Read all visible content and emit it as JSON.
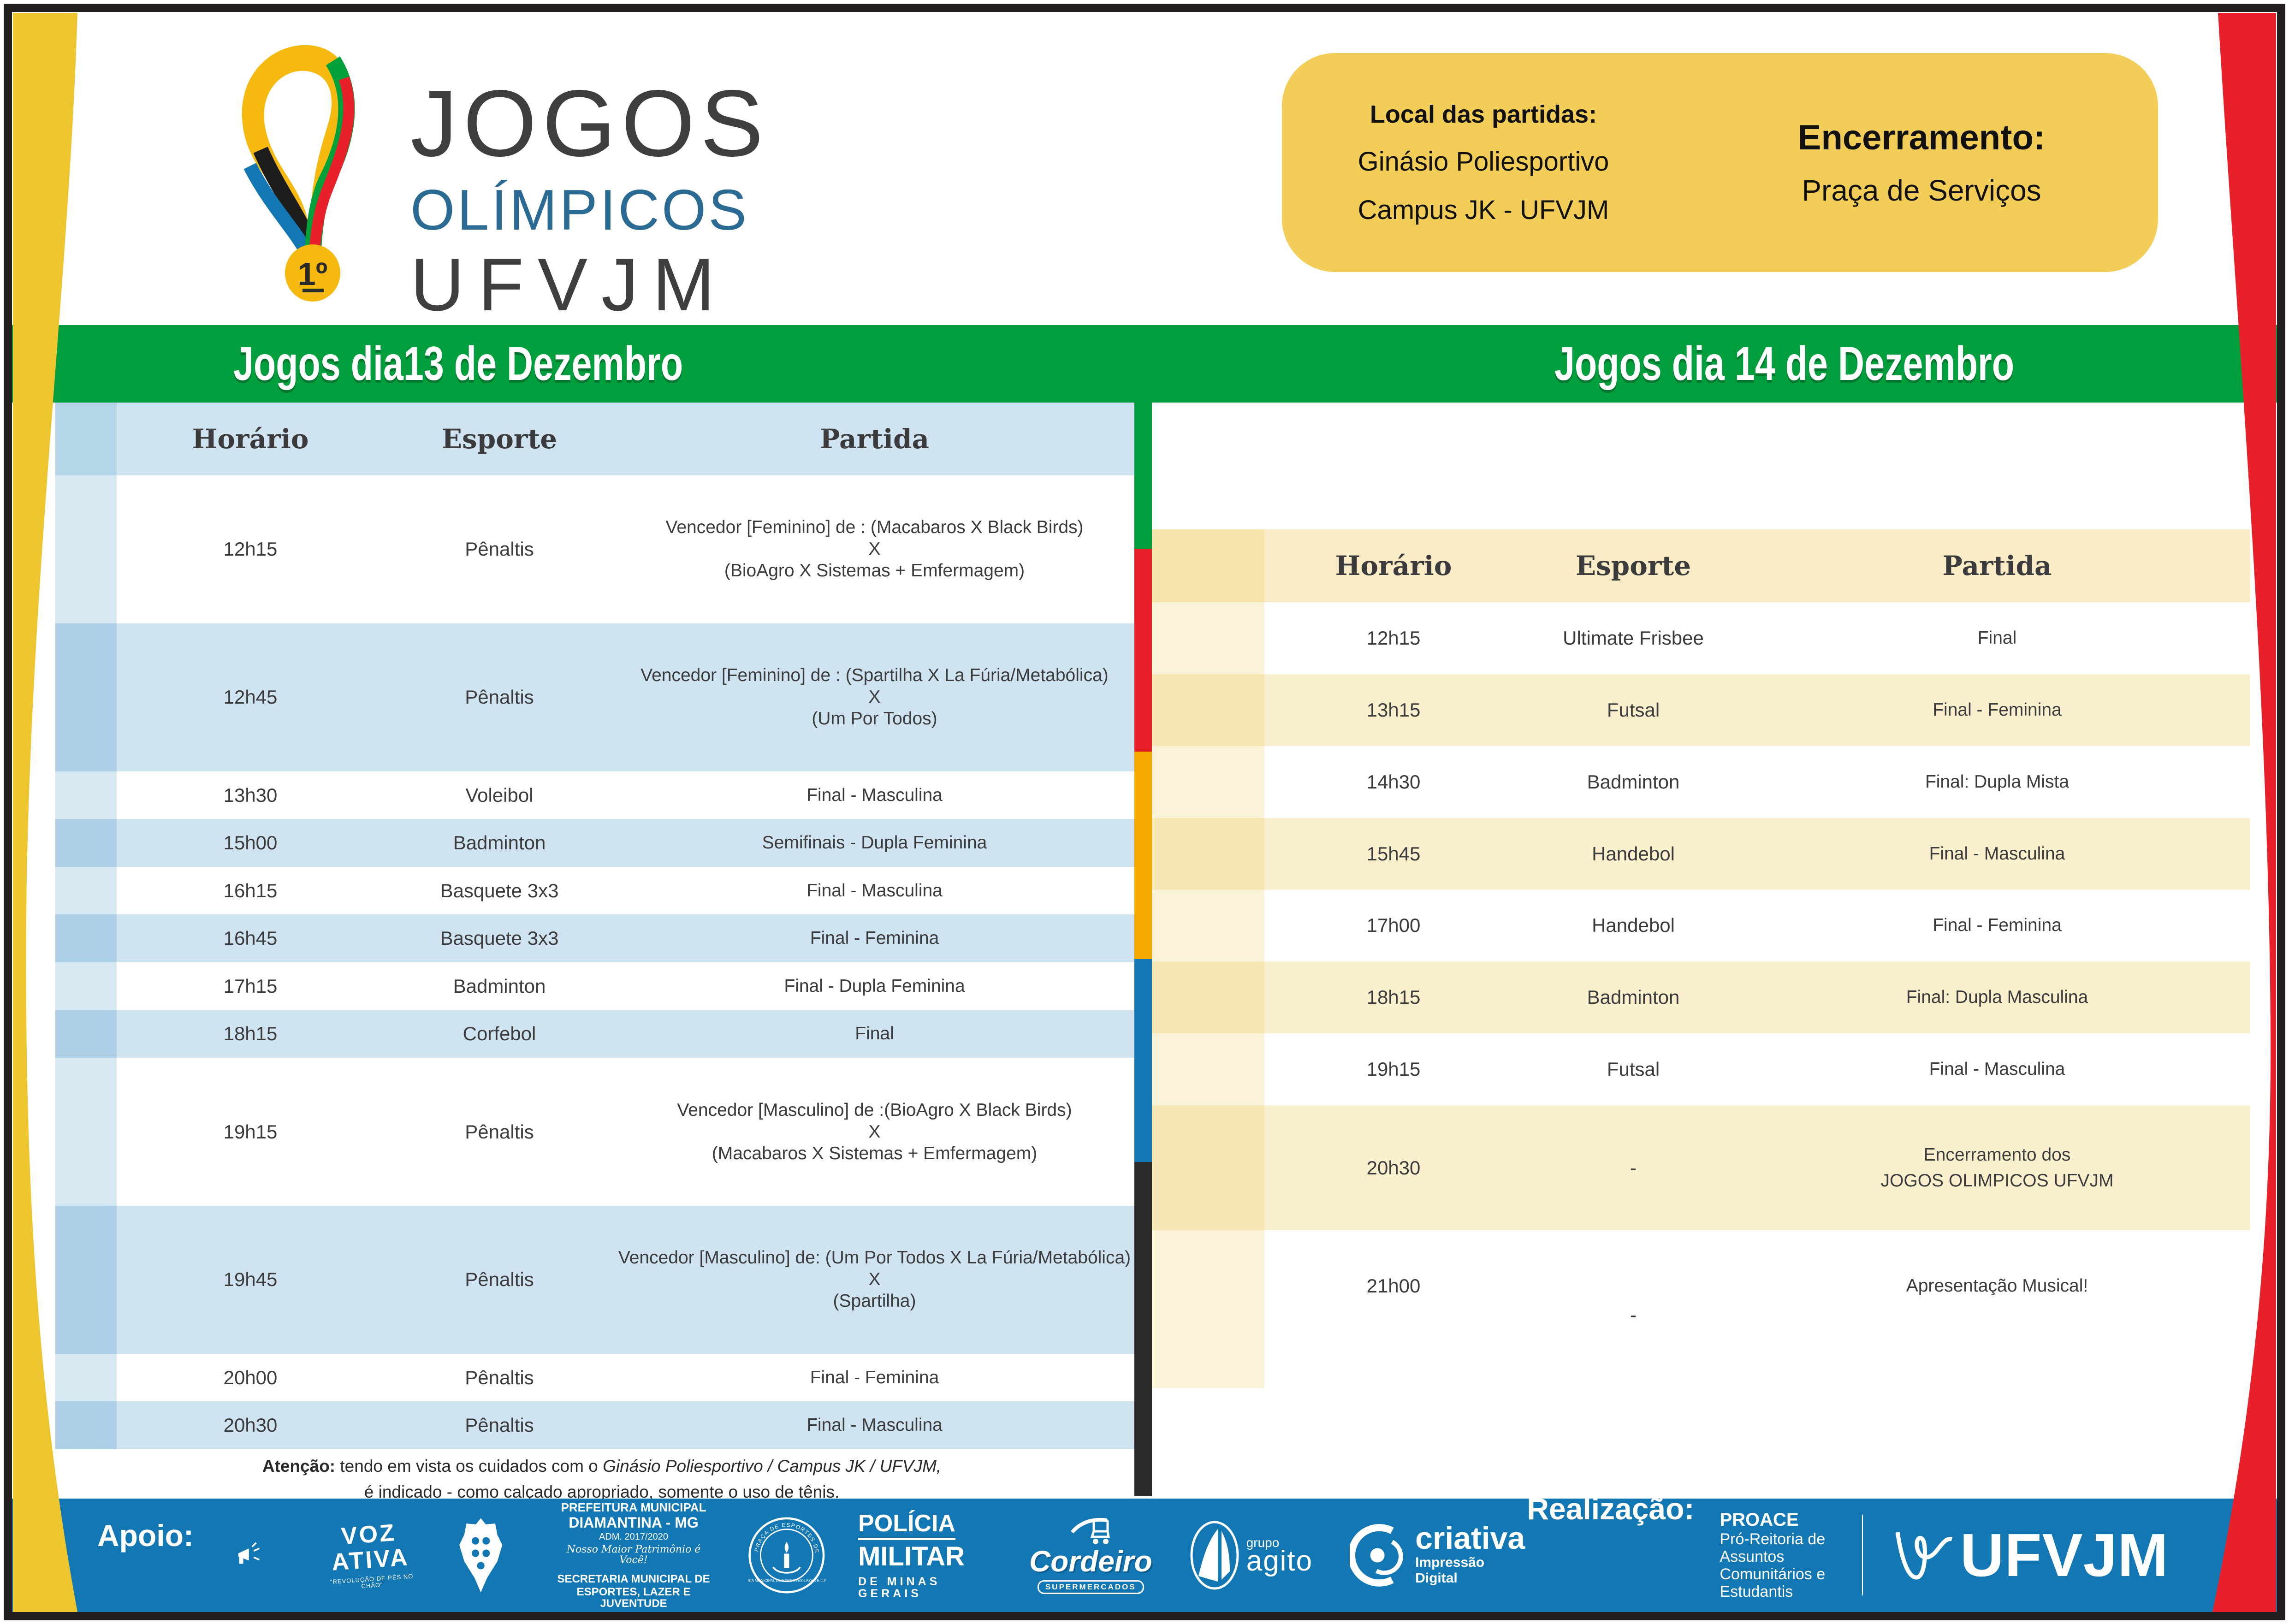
{
  "palette": {
    "green": "#009E3D",
    "red": "#E8202A",
    "yellow_strip": "#F6AB00",
    "blue": "#1377B3",
    "black": "#2B2A29",
    "row_blue": "#CFE4F0",
    "row_cream": "#FAF0CD",
    "panel_yellow": "#F2CE58",
    "curve_yellow": "#EDC52F",
    "logo_gray": "#3E3E40",
    "logo_blue": "#2B6B93"
  },
  "logo": {
    "title": "JOGOS",
    "subtitle": "OLÍMPICOS",
    "org": "UFVJM",
    "medal_label": "1º"
  },
  "info_box": {
    "location_label": "Local das partidas:",
    "location_line1": "Ginásio Poliesportivo",
    "location_line2": "Campus JK - UFVJM",
    "closing_label": "Encerramento:",
    "closing_value": "Praça de Serviços"
  },
  "banners": {
    "left": "Jogos dia13 de Dezembro",
    "right": "Jogos dia 14 de Dezembro"
  },
  "tables": [
    {
      "id": "dec13",
      "columns": {
        "time": "Horário",
        "sport": "Esporte",
        "match": "Partida"
      },
      "rows": [
        {
          "time": "12h15",
          "sport": "Pênaltis",
          "match": [
            "Vencedor [Feminino] de : (Macabaros X Black Birds)",
            "X",
            "(BioAgro X Sistemas + Emfermagem)"
          ]
        },
        {
          "time": "12h45",
          "sport": "Pênaltis",
          "match": [
            "Vencedor [Feminino] de : (Spartilha X La Fúria/Metabólica)",
            "X",
            "(Um Por Todos)"
          ]
        },
        {
          "time": "13h30",
          "sport": "Voleibol",
          "match": [
            "Final - Masculina"
          ]
        },
        {
          "time": "15h00",
          "sport": "Badminton",
          "match": [
            "Semifinais - Dupla Feminina"
          ]
        },
        {
          "time": "16h15",
          "sport": "Basquete 3x3",
          "match": [
            "Final - Masculina"
          ]
        },
        {
          "time": "16h45",
          "sport": "Basquete 3x3",
          "match": [
            "Final - Feminina"
          ]
        },
        {
          "time": "17h15",
          "sport": "Badminton",
          "match": [
            "Final  - Dupla Feminina"
          ]
        },
        {
          "time": "18h15",
          "sport": "Corfebol",
          "match": [
            "Final"
          ]
        },
        {
          "time": "19h15",
          "sport": "Pênaltis",
          "match": [
            "Vencedor [Masculino] de :(BioAgro  X Black Birds)",
            "X",
            "(Macabaros X Sistemas + Emfermagem)"
          ]
        },
        {
          "time": "19h45",
          "sport": "Pênaltis",
          "match": [
            "Vencedor [Masculino] de: (Um Por Todos X La Fúria/Metabólica)",
            "X",
            "(Spartilha)"
          ]
        },
        {
          "time": "20h00",
          "sport": "Pênaltis",
          "match": [
            "Final - Feminina"
          ]
        },
        {
          "time": "20h30",
          "sport": "Pênaltis",
          "match": [
            "Final - Masculina"
          ]
        }
      ]
    },
    {
      "id": "dec14",
      "columns": {
        "time": "Horário",
        "sport": "Esporte",
        "match": "Partida"
      },
      "rows": [
        {
          "time": "12h15",
          "sport": "Ultimate Frisbee",
          "match": [
            "Final"
          ]
        },
        {
          "time": "13h15",
          "sport": "Futsal",
          "match": [
            "Final - Feminina"
          ]
        },
        {
          "time": "14h30",
          "sport": "Badminton",
          "match": [
            "Final: Dupla Mista"
          ]
        },
        {
          "time": "15h45",
          "sport": "Handebol",
          "match": [
            "Final - Masculina"
          ]
        },
        {
          "time": "17h00",
          "sport": "Handebol",
          "match": [
            "Final - Feminina"
          ]
        },
        {
          "time": "18h15",
          "sport": "Badminton",
          "match": [
            "Final: Dupla Masculina"
          ]
        },
        {
          "time": "19h15",
          "sport": "Futsal",
          "match": [
            "Final - Masculina"
          ]
        },
        {
          "time": "20h30",
          "sport": "-",
          "match": [
            "Encerramento dos",
            "JOGOS OLIMPICOS UFVJM"
          ]
        },
        {
          "time": "21h00",
          "sport": "-",
          "sport_low": true,
          "tall": true,
          "match": [
            "Apresentação Musical!"
          ]
        }
      ]
    }
  ],
  "note": {
    "label": "Atenção:",
    "line1": " tendo em vista os cuidados com o ",
    "venue": "Ginásio Poliesportivo / Campus JK / UFVJM,",
    "line2": "é indicado - como calçado apropriado, somente o uso de tênis."
  },
  "footer": {
    "apoio_label": "Apoio:",
    "realizacao_label": "Realização:",
    "logos": {
      "voz_ativa": {
        "line1": "VOZ",
        "line2": "ATIVA",
        "tagline": "\"REVOLUÇÃO DE PÉS NO CHÃO\""
      },
      "prefeitura": {
        "line1": "PREFEITURA MUNICIPAL",
        "line2": "DIAMANTINA - MG",
        "line3": "ADM. 2017/2020",
        "script": "Nosso Maior Patrimônio é Você!",
        "dept1": "SECRETARIA MUNICIPAL DE",
        "dept2": "ESPORTES, LAZER E JUVENTUDE"
      },
      "praca_seal": {
        "ring_text": "PRAÇA DE ESPORTES DE DIAMANTINA",
        "caption": "SECRETARIA MUNICIPAL DE ESPORTES LAZER E JUVENTUDE"
      },
      "policia": {
        "line1": "POLÍCIA",
        "line2": "MILITAR",
        "line3": "DE MINAS GERAIS"
      },
      "cordeiro": {
        "name": "Cordeiro",
        "sub": "SUPERMERCADOS"
      },
      "agito": {
        "grupo": "grupo",
        "name": "agito"
      },
      "criativa": {
        "name": "criativa",
        "sub": "Impressão Digital"
      }
    },
    "realizacao": {
      "org": "PROACE",
      "line1": "Pró-Reitoria de Assuntos",
      "line2": "Comunitários e Estudantis",
      "university": "UFVJM"
    }
  }
}
